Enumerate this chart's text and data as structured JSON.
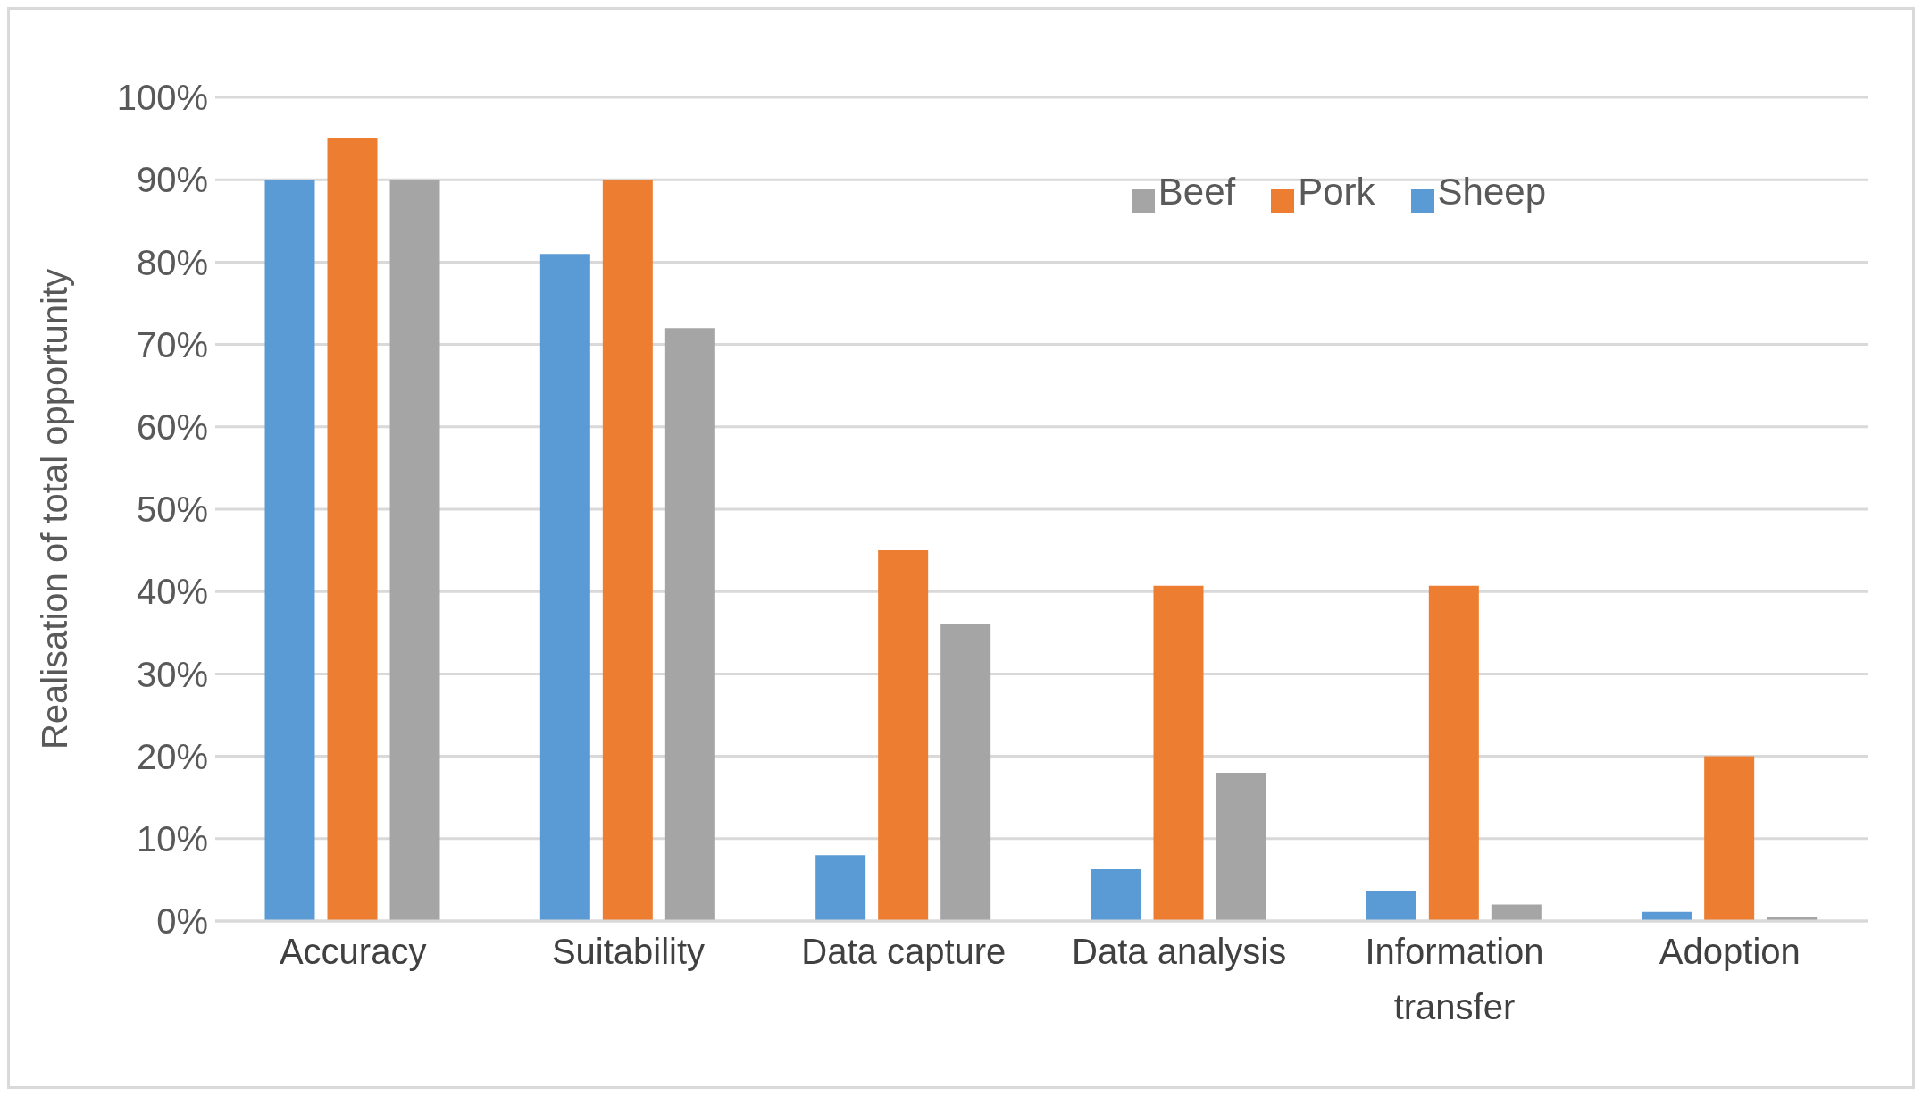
{
  "chart_data": {
    "type": "bar",
    "ylabel": "Realisation of total opportunity",
    "categories": [
      "Accuracy",
      "Suitability",
      "Data capture",
      "Data analysis",
      "Information transfer",
      "Adoption"
    ],
    "series": [
      {
        "name": "Sheep",
        "color": "#5b9bd5",
        "values": [
          90,
          81,
          8,
          6.3,
          3.7,
          1.1
        ]
      },
      {
        "name": "Pork",
        "color": "#ed7d31",
        "values": [
          95,
          90,
          45,
          40.7,
          40.7,
          20
        ]
      },
      {
        "name": "Beef",
        "color": "#a5a5a5",
        "values": [
          90,
          72,
          36,
          18,
          2,
          0.5
        ]
      }
    ],
    "ylim": [
      0,
      100
    ],
    "yticks": [
      {
        "value": 0,
        "label": "0%"
      },
      {
        "value": 10,
        "label": "10%"
      },
      {
        "value": 20,
        "label": "20%"
      },
      {
        "value": 30,
        "label": "30%"
      },
      {
        "value": 40,
        "label": "40%"
      },
      {
        "value": 50,
        "label": "50%"
      },
      {
        "value": 60,
        "label": "60%"
      },
      {
        "value": 70,
        "label": "70%"
      },
      {
        "value": 80,
        "label": "80%"
      },
      {
        "value": 90,
        "label": "90%"
      },
      {
        "value": 100,
        "label": "100%"
      }
    ],
    "grid": "y",
    "legend": "top right"
  }
}
